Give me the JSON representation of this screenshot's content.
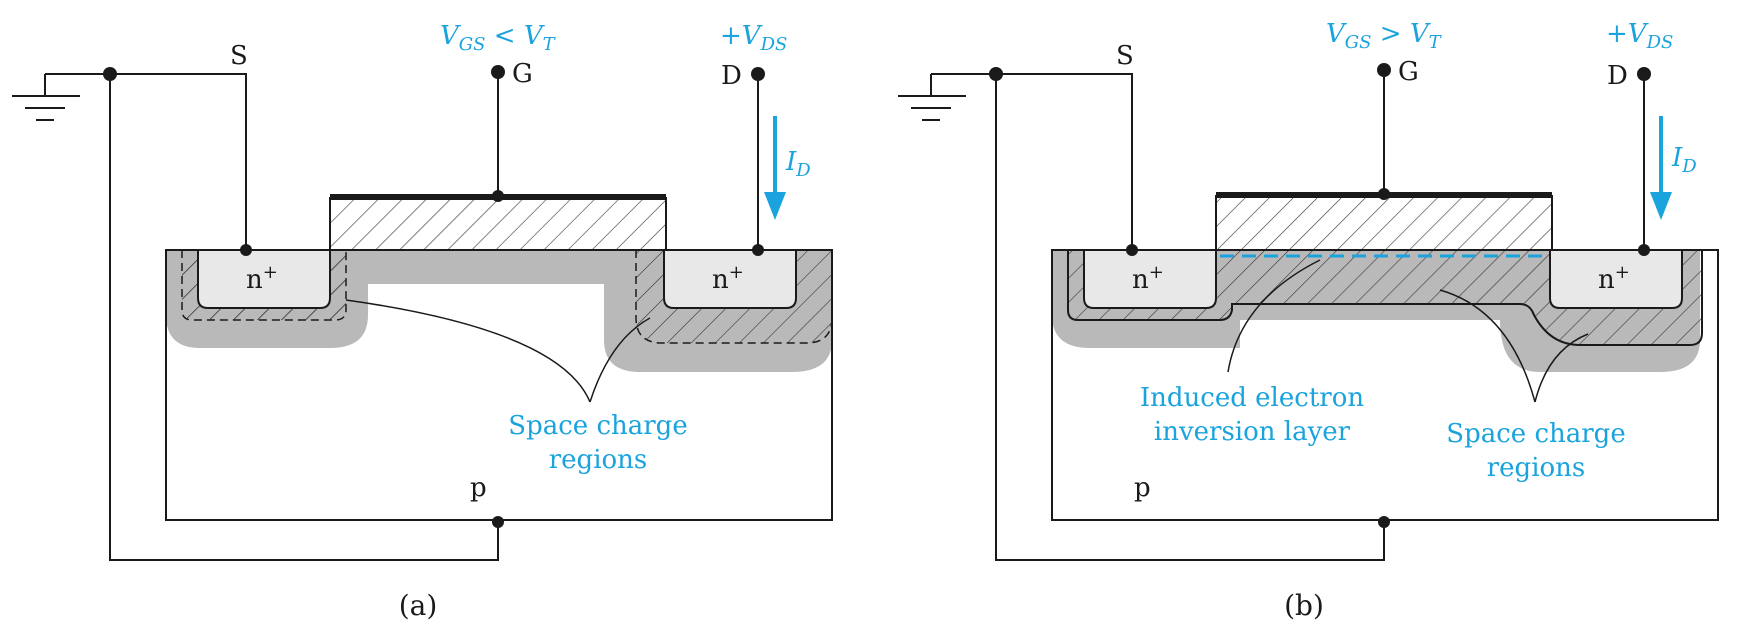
{
  "colors": {
    "accent": "#1aa3dd",
    "ink": "#1a1a1a",
    "depletion": "#b9b9b9",
    "implant": "#e8e8e8"
  },
  "panel_a": {
    "caption": "(a)",
    "source_label": "S",
    "gate_label": "G",
    "drain_label": "D",
    "source_region": "n",
    "drain_region": "n",
    "substrate_label": "p",
    "vgs_v": "V",
    "vgs_sub": "GS",
    "vgs_rel": " < ",
    "vgs_vt": "V",
    "vgs_vt_sub": "T",
    "vds_plus": "+",
    "vds_v": "V",
    "vds_sub": "DS",
    "id_i": "I",
    "id_sub": "D",
    "space_line1": "Space charge",
    "space_line2": "regions"
  },
  "panel_b": {
    "caption": "(b)",
    "source_label": "S",
    "gate_label": "G",
    "drain_label": "D",
    "source_region": "n",
    "drain_region": "n",
    "substrate_label": "p",
    "vgs_v": "V",
    "vgs_sub": "GS",
    "vgs_rel": " > ",
    "vgs_vt": "V",
    "vgs_vt_sub": "T",
    "vds_plus": "+",
    "vds_v": "V",
    "vds_sub": "DS",
    "id_i": "I",
    "id_sub": "D",
    "inversion_line1": "Induced electron",
    "inversion_line2": "inversion layer",
    "space_line1": "Space charge",
    "space_line2": "regions"
  }
}
